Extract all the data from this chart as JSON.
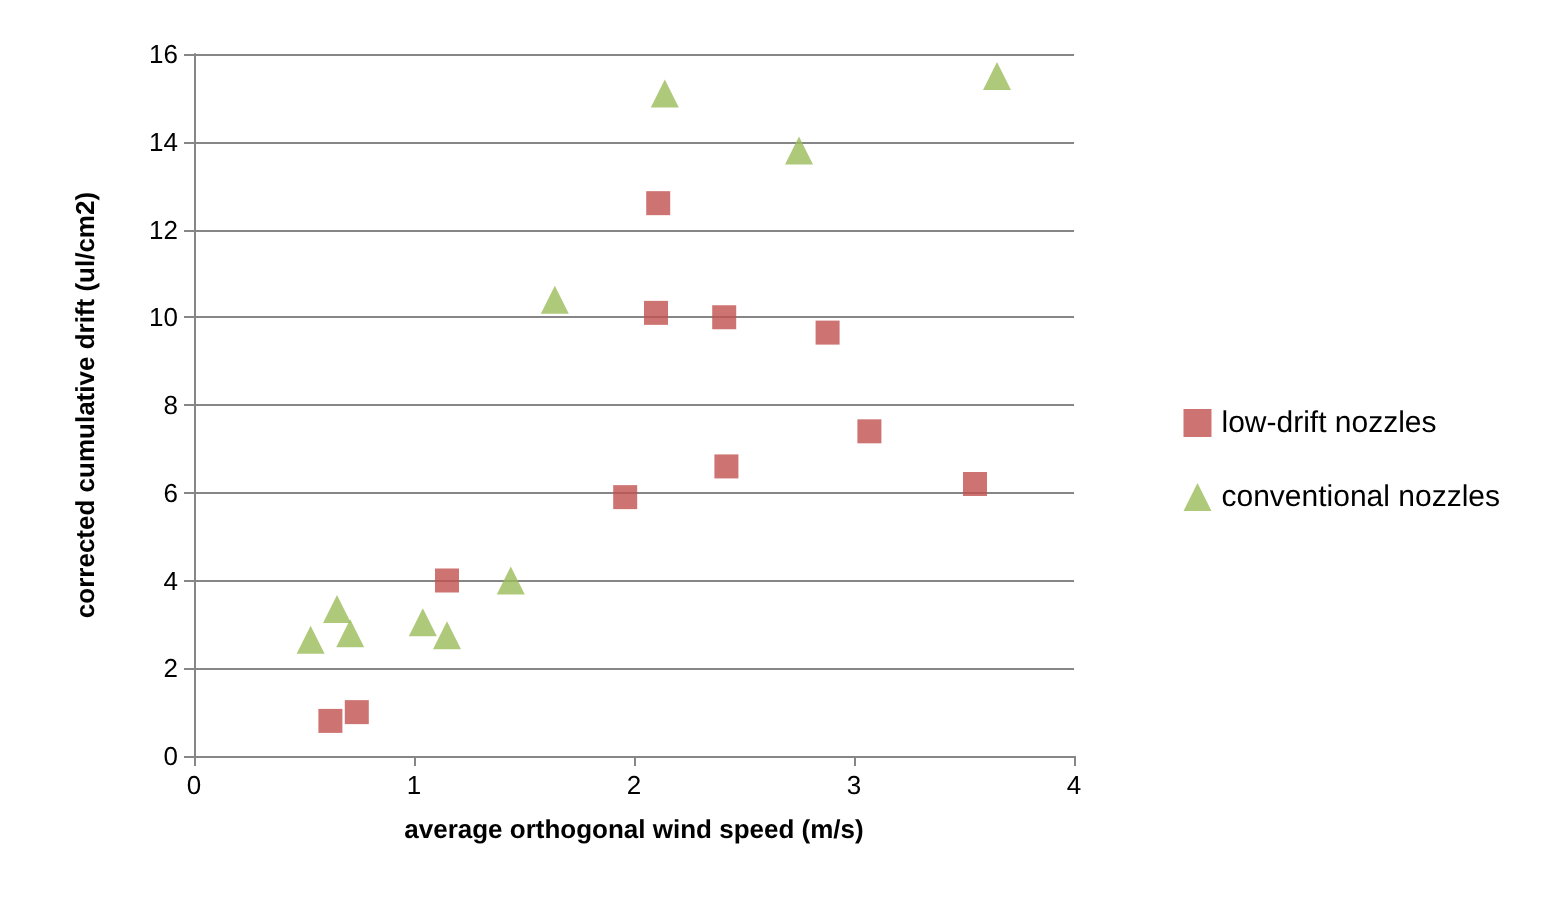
{
  "chart_data": {
    "type": "scatter",
    "xlabel": "average orthogonal wind speed (m/s)",
    "ylabel": "corrected cumulative drift (ul/cm2)",
    "xlim": [
      0,
      4
    ],
    "xticks": [
      0,
      1,
      2,
      3,
      4
    ],
    "ylim": [
      0,
      16
    ],
    "yticks": [
      0,
      2,
      4,
      6,
      8,
      10,
      12,
      14,
      16
    ],
    "grid": "y",
    "legend": "right",
    "series": [
      {
        "name": "low-drift nozzles",
        "color": "#c0504d",
        "marker": "square",
        "x": [
          2.11,
          2.1,
          2.41,
          2.88,
          3.07,
          3.55,
          2.42,
          1.96,
          1.15,
          0.62,
          0.74
        ],
        "values": [
          12.6,
          10.1,
          10.0,
          9.65,
          7.4,
          6.2,
          6.6,
          5.9,
          4.0,
          0.8,
          1.0
        ]
      },
      {
        "name": "conventional nozzles",
        "color": "#9bbb59",
        "marker": "triangle",
        "x": [
          3.65,
          2.14,
          2.75,
          1.64,
          1.44,
          1.15,
          1.04,
          0.65,
          0.71,
          0.53
        ],
        "values": [
          15.5,
          15.1,
          13.8,
          10.4,
          4.0,
          2.75,
          3.05,
          3.35,
          2.8,
          2.65
        ]
      }
    ]
  }
}
